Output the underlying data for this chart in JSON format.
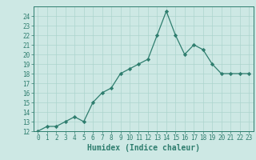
{
  "x": [
    0,
    1,
    2,
    3,
    4,
    5,
    6,
    7,
    8,
    9,
    10,
    11,
    12,
    13,
    14,
    15,
    16,
    17,
    18,
    19,
    20,
    21,
    22,
    23
  ],
  "y": [
    12,
    12.5,
    12.5,
    13,
    13.5,
    13,
    15,
    16,
    16.5,
    18,
    18.5,
    19,
    19.5,
    22,
    24.5,
    22,
    20,
    21,
    20.5,
    19,
    18,
    18,
    18,
    18
  ],
  "line_color": "#2e7d6e",
  "marker_color": "#2e7d6e",
  "bg_color": "#cde8e4",
  "grid_color": "#add4ce",
  "xlabel": "Humidex (Indice chaleur)",
  "ylim": [
    12,
    25
  ],
  "xlim": [
    -0.5,
    23.5
  ],
  "yticks": [
    12,
    13,
    14,
    15,
    16,
    17,
    18,
    19,
    20,
    21,
    22,
    23,
    24
  ],
  "xticks": [
    0,
    1,
    2,
    3,
    4,
    5,
    6,
    7,
    8,
    9,
    10,
    11,
    12,
    13,
    14,
    15,
    16,
    17,
    18,
    19,
    20,
    21,
    22,
    23
  ],
  "tick_label_fontsize": 5.5,
  "xlabel_fontsize": 7
}
